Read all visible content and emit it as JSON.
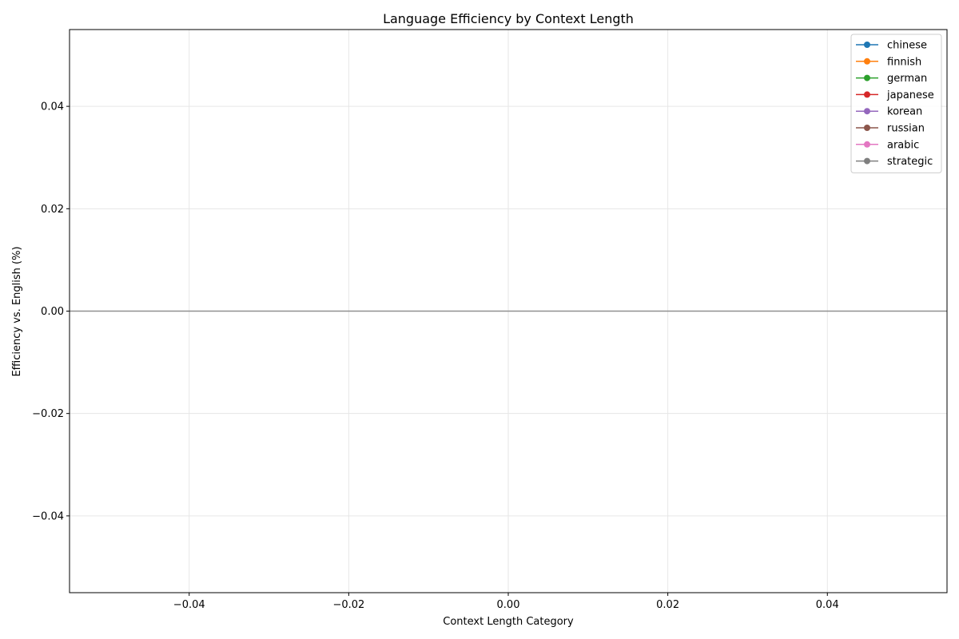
{
  "chart_data": {
    "type": "line",
    "title": "Language Efficiency by Context Length",
    "xlabel": "Context Length Category",
    "ylabel": "Efficiency vs. English (%)",
    "xlim": [
      -0.055,
      0.055
    ],
    "ylim": [
      -0.055,
      0.055
    ],
    "x_ticks": [
      -0.04,
      -0.02,
      0.0,
      0.02,
      0.04
    ],
    "x_tick_labels": [
      "−0.04",
      "−0.02",
      "0.00",
      "0.02",
      "0.04"
    ],
    "y_ticks": [
      -0.04,
      -0.02,
      0.0,
      0.02,
      0.04
    ],
    "y_tick_labels": [
      "−0.04",
      "−0.02",
      "0.00",
      "0.02",
      "0.04"
    ],
    "grid": true,
    "legend_position": "top-right",
    "reference_line": {
      "y": 0,
      "color": "#808080"
    },
    "series": [
      {
        "name": "chinese",
        "color": "#1f77b4",
        "values": []
      },
      {
        "name": "finnish",
        "color": "#ff7f0e",
        "values": []
      },
      {
        "name": "german",
        "color": "#2ca02c",
        "values": []
      },
      {
        "name": "japanese",
        "color": "#d62728",
        "values": []
      },
      {
        "name": "korean",
        "color": "#9467bd",
        "values": []
      },
      {
        "name": "russian",
        "color": "#8c564b",
        "values": []
      },
      {
        "name": "arabic",
        "color": "#e377c2",
        "values": []
      },
      {
        "name": "strategic",
        "color": "#7f7f7f",
        "values": []
      }
    ]
  }
}
